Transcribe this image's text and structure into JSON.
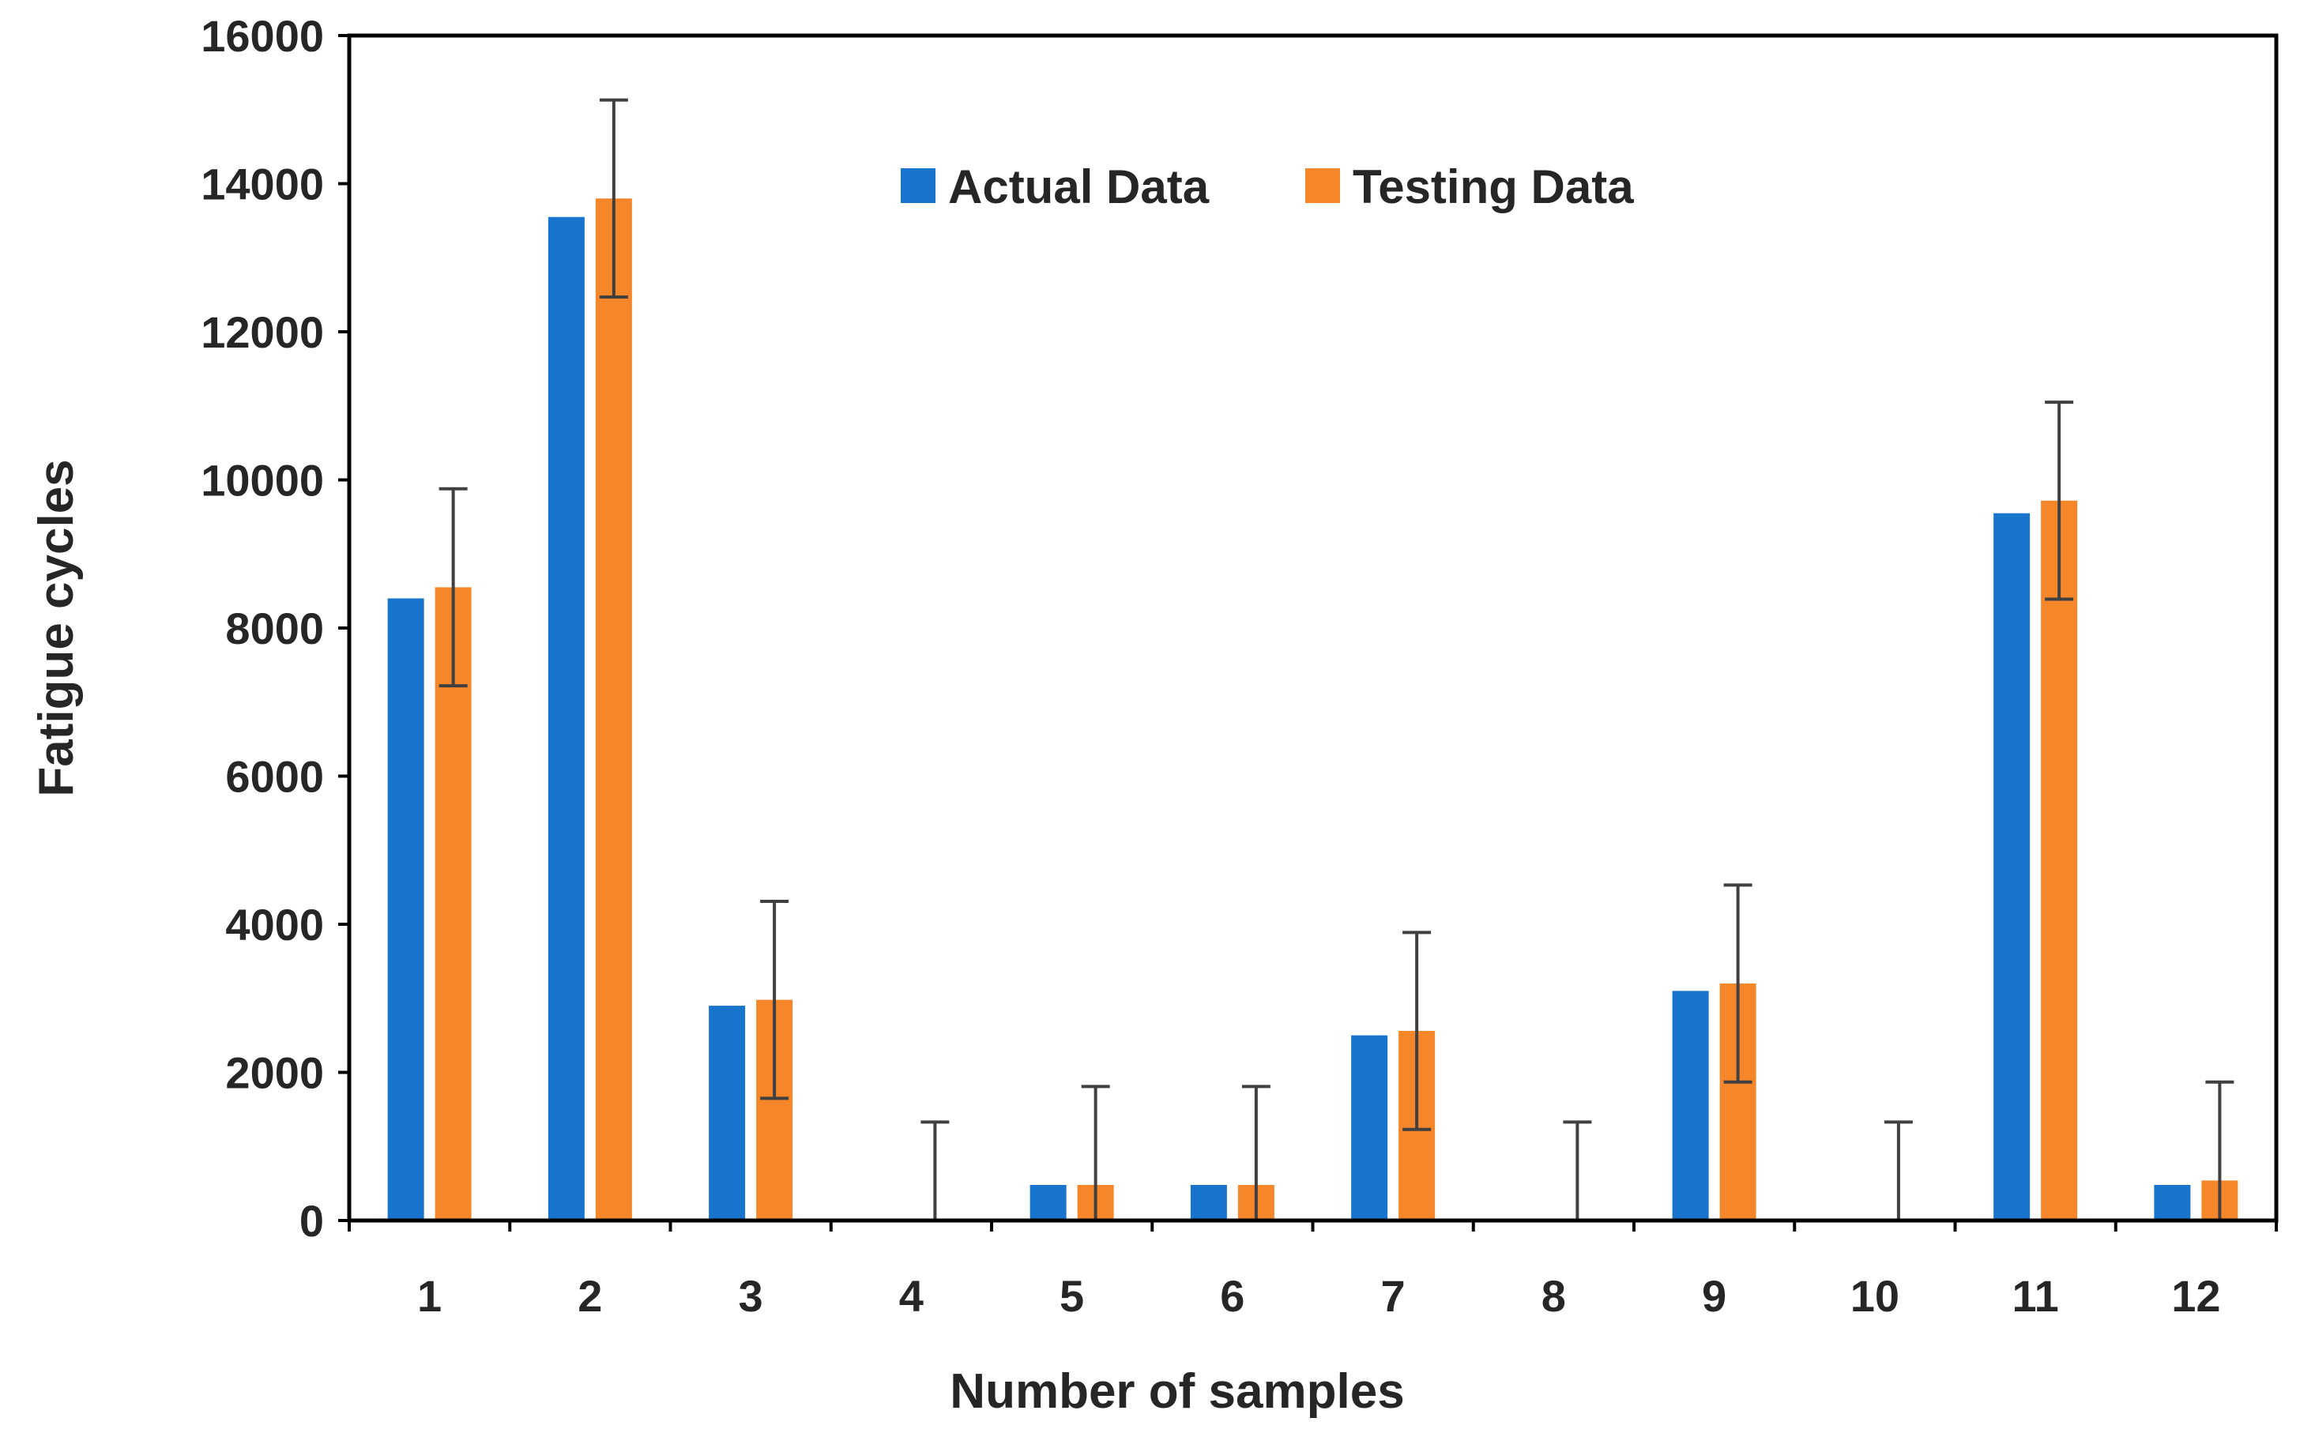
{
  "chart_data": {
    "type": "bar",
    "title": "",
    "xlabel": "Number of samples",
    "ylabel": "Fatigue cycles",
    "categories": [
      "1",
      "2",
      "3",
      "4",
      "5",
      "6",
      "7",
      "8",
      "9",
      "10",
      "11",
      "12"
    ],
    "ylim": [
      0,
      16000
    ],
    "yticks": [
      0,
      2000,
      4000,
      6000,
      8000,
      10000,
      12000,
      14000,
      16000
    ],
    "ytick_labels": [
      "0",
      "2000",
      "4000",
      "6000",
      "8000",
      "10000",
      "12000",
      "14000",
      "16000"
    ],
    "series": [
      {
        "name": "Actual Data",
        "color": "#1874CD",
        "values": [
          8400,
          13550,
          2900,
          0,
          480,
          480,
          2500,
          0,
          3100,
          0,
          9550,
          480
        ]
      },
      {
        "name": "Testing Data",
        "color": "#F5862A",
        "values": [
          8550,
          13800,
          2980,
          0,
          480,
          480,
          2560,
          0,
          3200,
          0,
          9720,
          540
        ]
      }
    ],
    "error_bar_series": "Testing Data",
    "error": 1330,
    "error_bar_color": "#404040",
    "grid": false,
    "legend_position": "top-center"
  }
}
